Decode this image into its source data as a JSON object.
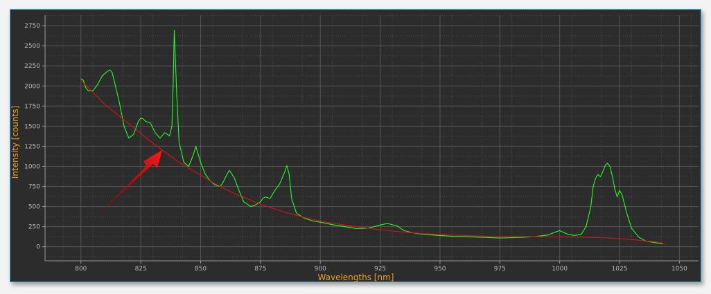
{
  "chart_data": {
    "type": "line",
    "title": "",
    "xlabel": "Wavelengths [nm]",
    "ylabel": "Intensity [counts]",
    "xlim": [
      785,
      1058
    ],
    "ylim": [
      -175,
      2880
    ],
    "x_ticks": [
      800,
      825,
      850,
      875,
      900,
      925,
      950,
      975,
      1000,
      1025,
      1050
    ],
    "y_ticks": [
      0,
      250,
      500,
      750,
      1000,
      1250,
      1500,
      1750,
      2000,
      2250,
      2500,
      2750
    ],
    "grid": true,
    "legend": "none",
    "series": [
      {
        "color": "#22ff22",
        "x": [
          800,
          801,
          802,
          803,
          805,
          807,
          809,
          811,
          812,
          813,
          814,
          816,
          818,
          820,
          822,
          824,
          825,
          826,
          827,
          829,
          831,
          833,
          835,
          836,
          837,
          838,
          838.5,
          839,
          840,
          841,
          843,
          845,
          847,
          848,
          850,
          852,
          854,
          856,
          858,
          859,
          861,
          862,
          864,
          866,
          868,
          871,
          873,
          875,
          876,
          877,
          879,
          881,
          883,
          885,
          886,
          887,
          888,
          890,
          893,
          897,
          901,
          905,
          910,
          915,
          920,
          925,
          928,
          932,
          935,
          940,
          945,
          950,
          955,
          960,
          965,
          970,
          975,
          980,
          985,
          990,
          995,
          998,
          1000,
          1003,
          1006,
          1009,
          1011,
          1013,
          1014,
          1015,
          1016,
          1017,
          1018,
          1019,
          1020,
          1021,
          1022,
          1023,
          1024,
          1025,
          1026,
          1028,
          1030,
          1033,
          1036,
          1039,
          1041,
          1043
        ],
        "y": [
          2090,
          2070,
          1980,
          1940,
          1940,
          2020,
          2130,
          2180,
          2200,
          2170,
          2050,
          1800,
          1500,
          1350,
          1400,
          1560,
          1600,
          1590,
          1560,
          1540,
          1420,
          1350,
          1420,
          1400,
          1380,
          1500,
          2000,
          2690,
          1900,
          1300,
          1050,
          1000,
          1150,
          1250,
          1050,
          900,
          820,
          770,
          750,
          780,
          900,
          950,
          860,
          700,
          560,
          500,
          520,
          560,
          600,
          620,
          600,
          700,
          780,
          920,
          1010,
          900,
          600,
          420,
          360,
          320,
          300,
          275,
          250,
          225,
          230,
          270,
          290,
          260,
          200,
          165,
          150,
          140,
          130,
          125,
          120,
          115,
          108,
          112,
          118,
          128,
          145,
          180,
          200,
          160,
          140,
          155,
          250,
          500,
          750,
          850,
          900,
          870,
          930,
          1010,
          1040,
          1000,
          880,
          720,
          620,
          700,
          650,
          420,
          230,
          120,
          70,
          55,
          45,
          35
        ]
      },
      {
        "color": "#e01010",
        "x": [
          800,
          805,
          810,
          815,
          820,
          825,
          830,
          835,
          840,
          845,
          850,
          855,
          860,
          865,
          870,
          875,
          880,
          885,
          890,
          895,
          900,
          910,
          920,
          930,
          940,
          950,
          960,
          970,
          980,
          990,
          1000,
          1010,
          1020,
          1030,
          1040,
          1044
        ],
        "y": [
          2070,
          1920,
          1770,
          1650,
          1530,
          1410,
          1290,
          1180,
          1070,
          980,
          890,
          800,
          720,
          650,
          590,
          530,
          480,
          430,
          390,
          350,
          320,
          270,
          230,
          195,
          170,
          150,
          140,
          130,
          128,
          125,
          122,
          118,
          110,
          90,
          60,
          40
        ]
      }
    ]
  }
}
